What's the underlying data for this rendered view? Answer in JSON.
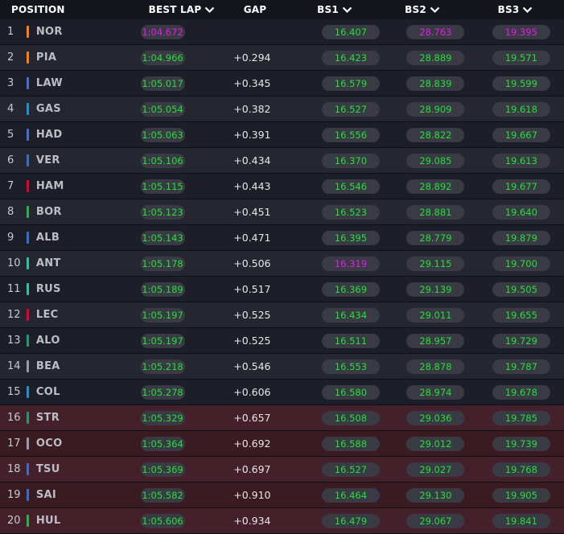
{
  "header": {
    "position": "POSITION",
    "best_lap": "BEST LAP",
    "gap": "GAP",
    "bs1": "BS1",
    "bs2": "BS2",
    "bs3": "BS3"
  },
  "colors": {
    "green": "#22e03a",
    "purple": "#e01ee6",
    "elimination_row": "#3a1b22"
  },
  "rows": [
    {
      "pos": "1",
      "code": "NOR",
      "team_color": "#ff8000",
      "best": "1:04.672",
      "best_purple": true,
      "gap": "",
      "bs1": "16.407",
      "bs1_purple": false,
      "bs2": "28.763",
      "bs2_purple": true,
      "bs3": "19.395",
      "bs3_purple": true,
      "elim": false
    },
    {
      "pos": "2",
      "code": "PIA",
      "team_color": "#ff8000",
      "best": "1:04.966",
      "best_purple": false,
      "gap": "+0.294",
      "bs1": "16.423",
      "bs1_purple": false,
      "bs2": "28.889",
      "bs2_purple": false,
      "bs3": "19.571",
      "bs3_purple": false,
      "elim": false
    },
    {
      "pos": "3",
      "code": "LAW",
      "team_color": "#4a6bd6",
      "best": "1:05.017",
      "best_purple": false,
      "gap": "+0.345",
      "bs1": "16.579",
      "bs1_purple": false,
      "bs2": "28.839",
      "bs2_purple": false,
      "bs3": "19.599",
      "bs3_purple": false,
      "elim": false
    },
    {
      "pos": "4",
      "code": "GAS",
      "team_color": "#1e90d6",
      "best": "1:05.054",
      "best_purple": false,
      "gap": "+0.382",
      "bs1": "16.527",
      "bs1_purple": false,
      "bs2": "28.909",
      "bs2_purple": false,
      "bs3": "19.618",
      "bs3_purple": false,
      "elim": false
    },
    {
      "pos": "5",
      "code": "HAD",
      "team_color": "#4a6bd6",
      "best": "1:05.063",
      "best_purple": false,
      "gap": "+0.391",
      "bs1": "16.556",
      "bs1_purple": false,
      "bs2": "28.822",
      "bs2_purple": false,
      "bs3": "19.667",
      "bs3_purple": false,
      "elim": false
    },
    {
      "pos": "6",
      "code": "VER",
      "team_color": "#3671c6",
      "best": "1:05.106",
      "best_purple": false,
      "gap": "+0.434",
      "bs1": "16.370",
      "bs1_purple": false,
      "bs2": "29.085",
      "bs2_purple": false,
      "bs3": "19.613",
      "bs3_purple": false,
      "elim": false
    },
    {
      "pos": "7",
      "code": "HAM",
      "team_color": "#e8002d",
      "best": "1:05.115",
      "best_purple": false,
      "gap": "+0.443",
      "bs1": "16.546",
      "bs1_purple": false,
      "bs2": "28.892",
      "bs2_purple": false,
      "bs3": "19.677",
      "bs3_purple": false,
      "elim": false
    },
    {
      "pos": "8",
      "code": "BOR",
      "team_color": "#27b34a",
      "best": "1:05.123",
      "best_purple": false,
      "gap": "+0.451",
      "bs1": "16.523",
      "bs1_purple": false,
      "bs2": "28.881",
      "bs2_purple": false,
      "bs3": "19.640",
      "bs3_purple": false,
      "elim": false
    },
    {
      "pos": "9",
      "code": "ALB",
      "team_color": "#2f6fd6",
      "best": "1:05.143",
      "best_purple": false,
      "gap": "+0.471",
      "bs1": "16.395",
      "bs1_purple": false,
      "bs2": "28.779",
      "bs2_purple": false,
      "bs3": "19.879",
      "bs3_purple": false,
      "elim": false
    },
    {
      "pos": "10",
      "code": "ANT",
      "team_color": "#27c4a8",
      "best": "1:05.178",
      "best_purple": false,
      "gap": "+0.506",
      "bs1": "16.319",
      "bs1_purple": true,
      "bs2": "29.115",
      "bs2_purple": false,
      "bs3": "19.700",
      "bs3_purple": false,
      "elim": false
    },
    {
      "pos": "11",
      "code": "RUS",
      "team_color": "#27c4a8",
      "best": "1:05.189",
      "best_purple": false,
      "gap": "+0.517",
      "bs1": "16.369",
      "bs1_purple": false,
      "bs2": "29.139",
      "bs2_purple": false,
      "bs3": "19.505",
      "bs3_purple": false,
      "elim": false
    },
    {
      "pos": "12",
      "code": "LEC",
      "team_color": "#e8002d",
      "best": "1:05.197",
      "best_purple": false,
      "gap": "+0.525",
      "bs1": "16.434",
      "bs1_purple": false,
      "bs2": "29.011",
      "bs2_purple": false,
      "bs3": "19.655",
      "bs3_purple": false,
      "elim": false
    },
    {
      "pos": "13",
      "code": "ALO",
      "team_color": "#229971",
      "best": "1:05.197",
      "best_purple": false,
      "gap": "+0.525",
      "bs1": "16.511",
      "bs1_purple": false,
      "bs2": "28.957",
      "bs2_purple": false,
      "bs3": "19.729",
      "bs3_purple": false,
      "elim": false
    },
    {
      "pos": "14",
      "code": "BEA",
      "team_color": "#9a9aa6",
      "best": "1:05.218",
      "best_purple": false,
      "gap": "+0.546",
      "bs1": "16.553",
      "bs1_purple": false,
      "bs2": "28.878",
      "bs2_purple": false,
      "bs3": "19.787",
      "bs3_purple": false,
      "elim": false
    },
    {
      "pos": "15",
      "code": "COL",
      "team_color": "#1e90d6",
      "best": "1:05.278",
      "best_purple": false,
      "gap": "+0.606",
      "bs1": "16.580",
      "bs1_purple": false,
      "bs2": "28.974",
      "bs2_purple": false,
      "bs3": "19.678",
      "bs3_purple": false,
      "elim": false
    },
    {
      "pos": "16",
      "code": "STR",
      "team_color": "#229971",
      "best": "1:05.329",
      "best_purple": false,
      "gap": "+0.657",
      "bs1": "16.508",
      "bs1_purple": false,
      "bs2": "29.036",
      "bs2_purple": false,
      "bs3": "19.785",
      "bs3_purple": false,
      "elim": true
    },
    {
      "pos": "17",
      "code": "OCO",
      "team_color": "#9a9aa6",
      "best": "1:05.364",
      "best_purple": false,
      "gap": "+0.692",
      "bs1": "16.588",
      "bs1_purple": false,
      "bs2": "29.012",
      "bs2_purple": false,
      "bs3": "19.739",
      "bs3_purple": false,
      "elim": true
    },
    {
      "pos": "18",
      "code": "TSU",
      "team_color": "#3671c6",
      "best": "1:05.369",
      "best_purple": false,
      "gap": "+0.697",
      "bs1": "16.527",
      "bs1_purple": false,
      "bs2": "29.027",
      "bs2_purple": false,
      "bs3": "19.768",
      "bs3_purple": false,
      "elim": true
    },
    {
      "pos": "19",
      "code": "SAI",
      "team_color": "#2f6fd6",
      "best": "1:05.582",
      "best_purple": false,
      "gap": "+0.910",
      "bs1": "16.464",
      "bs1_purple": false,
      "bs2": "29.130",
      "bs2_purple": false,
      "bs3": "19.905",
      "bs3_purple": false,
      "elim": true
    },
    {
      "pos": "20",
      "code": "HUL",
      "team_color": "#27b34a",
      "best": "1:05.606",
      "best_purple": false,
      "gap": "+0.934",
      "bs1": "16.479",
      "bs1_purple": false,
      "bs2": "29.067",
      "bs2_purple": false,
      "bs3": "19.841",
      "bs3_purple": false,
      "elim": true
    }
  ]
}
